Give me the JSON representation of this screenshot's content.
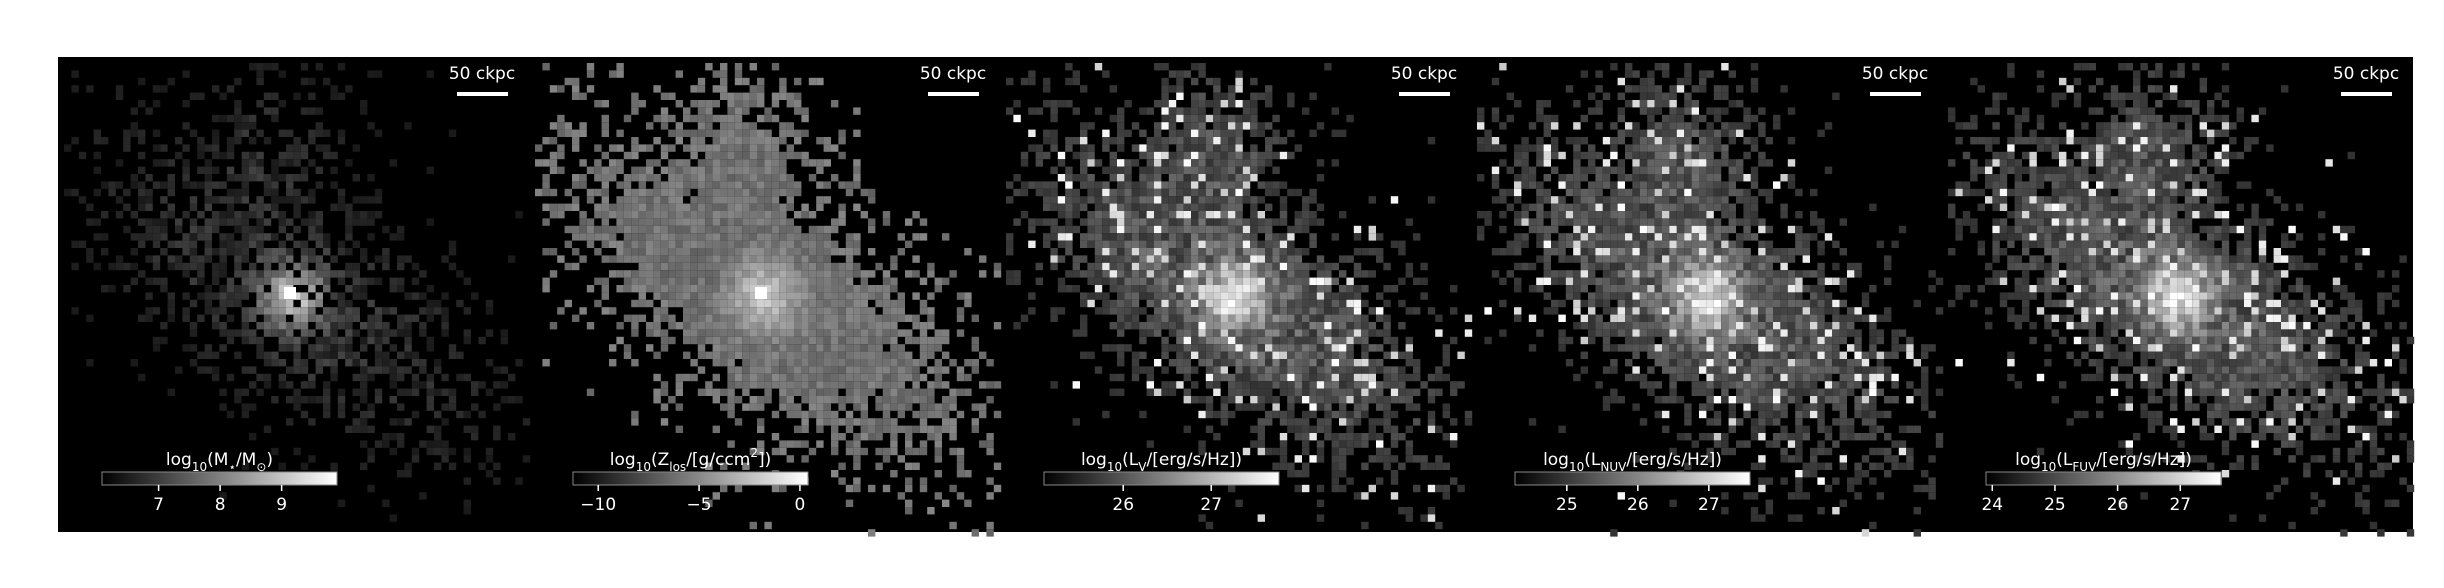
{
  "chart_data": [
    {
      "type": "image",
      "scale_bar": "50 ckpc",
      "colorbar_label": [
        {
          "text": "log"
        },
        {
          "text": "10",
          "sub": true
        },
        {
          "text": "(M"
        },
        {
          "text": "⋆",
          "sub": true
        },
        {
          "text": "/M"
        },
        {
          "text": "⊙",
          "sub": true
        },
        {
          "text": ")"
        }
      ],
      "clim": [
        6.08,
        9.9
      ],
      "cticks": [
        7,
        8,
        9
      ],
      "style": "dim"
    },
    {
      "type": "image",
      "scale_bar": "50 ckpc",
      "colorbar_label": [
        {
          "text": "log"
        },
        {
          "text": "10",
          "sub": true
        },
        {
          "text": "(Z"
        },
        {
          "text": "los",
          "sub": true
        },
        {
          "text": "/[g/ccm"
        },
        {
          "text": "2",
          "sup": true
        },
        {
          "text": "])"
        }
      ],
      "clim": [
        -11.25,
        0.4
      ],
      "cticks": [
        {
          "value": -10,
          "label": "−10"
        },
        {
          "value": -5,
          "label": "−5"
        },
        0
      ],
      "style": "flat"
    },
    {
      "type": "image",
      "scale_bar": "50 ckpc",
      "colorbar_label": [
        {
          "text": "log"
        },
        {
          "text": "10",
          "sub": true
        },
        {
          "text": "(L"
        },
        {
          "text": "V",
          "sub": true
        },
        {
          "text": "/[erg/s/Hz])"
        }
      ],
      "clim": [
        25.1,
        27.77
      ],
      "cticks": [
        26,
        27
      ],
      "style": "speckle"
    },
    {
      "type": "image",
      "scale_bar": "50 ckpc",
      "colorbar_label": [
        {
          "text": "log"
        },
        {
          "text": "10",
          "sub": true
        },
        {
          "text": "(L"
        },
        {
          "text": "NUV",
          "sub": true
        },
        {
          "text": "/[erg/s/Hz])"
        }
      ],
      "clim": [
        24.27,
        27.58
      ],
      "cticks": [
        25,
        26,
        27
      ],
      "style": "speckle"
    },
    {
      "type": "image",
      "scale_bar": "50 ckpc",
      "colorbar_label": [
        {
          "text": "log"
        },
        {
          "text": "10",
          "sub": true
        },
        {
          "text": "(L"
        },
        {
          "text": "FUV",
          "sub": true
        },
        {
          "text": "/[erg/s/Hz])"
        }
      ],
      "clim": [
        23.9,
        27.65
      ],
      "cticks": [
        24,
        25,
        26,
        27
      ],
      "style": "speckle"
    }
  ]
}
